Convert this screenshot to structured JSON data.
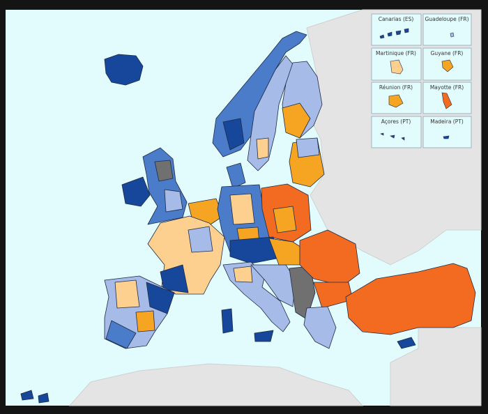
{
  "insets": [
    {
      "label": "Canarias (ES)"
    },
    {
      "label": "Guadeloupe (FR)"
    },
    {
      "label": "Martinique (FR)"
    },
    {
      "label": "Guyane (FR)"
    },
    {
      "label": "Réunion (FR)"
    },
    {
      "label": "Mayotte (FR)"
    },
    {
      "label": "Açores (PT)"
    },
    {
      "label": "Madeira (PT)"
    }
  ]
}
